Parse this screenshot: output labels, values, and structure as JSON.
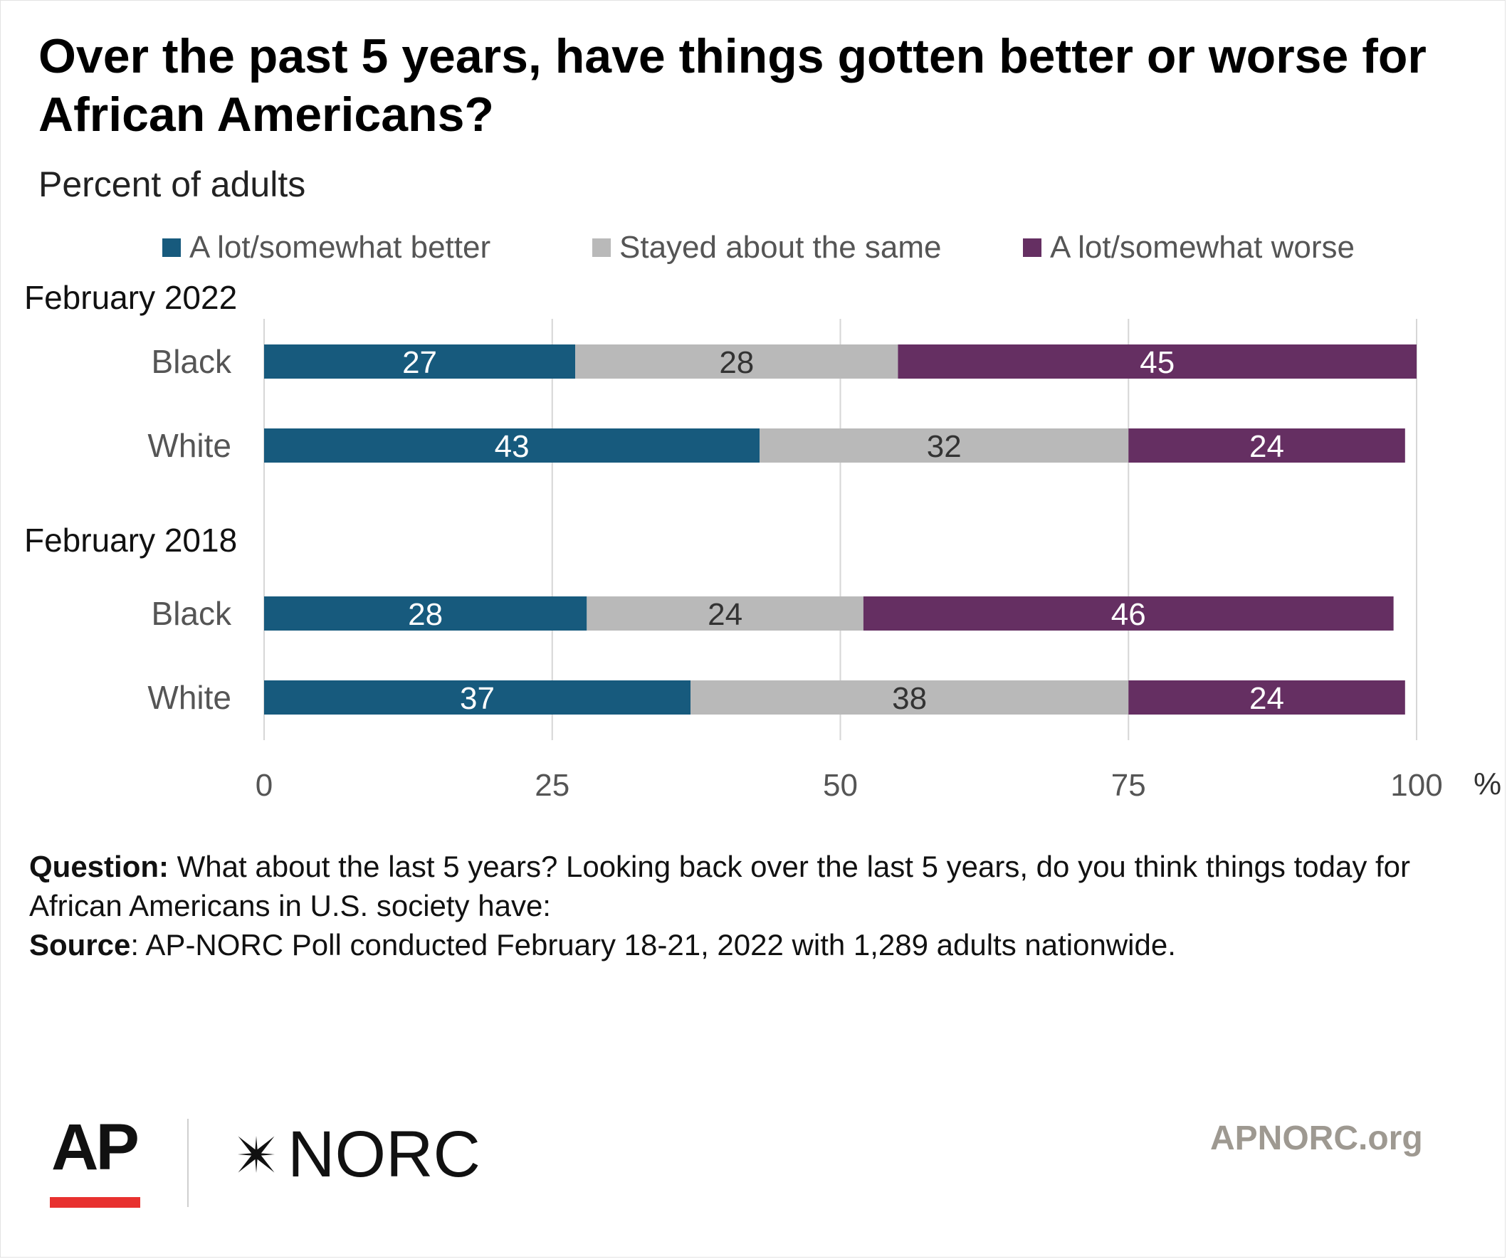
{
  "chart_data": {
    "type": "bar",
    "orientation": "horizontal",
    "stacked": true,
    "title": "Over the past 5 years, have things gotten better or worse for African Americans?",
    "subtitle": "Percent of adults",
    "xlim": [
      0,
      100
    ],
    "x_ticks": [
      "0",
      "25",
      "50",
      "75",
      "100"
    ],
    "x_unit": "%",
    "grid": true,
    "legend_position": "top",
    "series": [
      {
        "name": "A lot/somewhat better",
        "color": "#175a7d"
      },
      {
        "name": "Stayed about the same",
        "color": "#b9b9b9"
      },
      {
        "name": "A lot/somewhat worse",
        "color": "#652f62"
      }
    ],
    "groups": [
      {
        "label": "February 2022",
        "rows": [
          {
            "label": "Black",
            "values": [
              27,
              28,
              45
            ]
          },
          {
            "label": "White",
            "values": [
              43,
              32,
              24
            ]
          }
        ]
      },
      {
        "label": "February 2018",
        "rows": [
          {
            "label": "Black",
            "values": [
              28,
              24,
              46
            ]
          },
          {
            "label": "White",
            "values": [
              37,
              38,
              24
            ]
          }
        ]
      }
    ]
  },
  "notes": {
    "question_label": "Question:",
    "question_text": " What about the last 5 years? Looking back over the last 5 years, do you think things today for African Americans in U.S. society have:",
    "source_label": "Source",
    "source_text": ": AP-NORC Poll conducted February 18-21, 2022 with 1,289 adults nationwide."
  },
  "footer": {
    "ap_logo": "AP",
    "norc_logo": "NORC",
    "site": "APNORC.org"
  }
}
